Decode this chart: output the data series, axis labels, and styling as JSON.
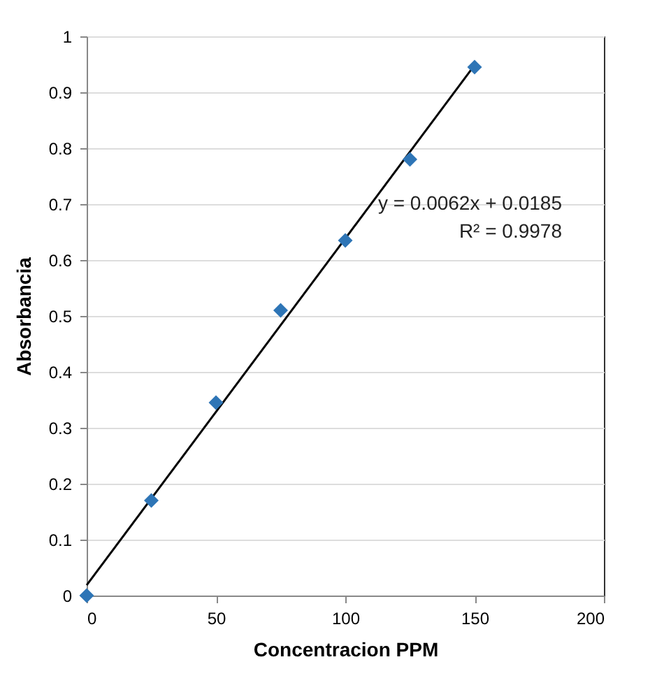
{
  "chart_data": {
    "type": "scatter",
    "xlabel": "Concentracion PPM",
    "ylabel": "Absorbancia",
    "xlim": [
      0,
      200
    ],
    "xticks": [
      0,
      50,
      100,
      150,
      200
    ],
    "ylim": [
      0,
      1
    ],
    "yticks": [
      0,
      0.1,
      0.2,
      0.3,
      0.4,
      0.5,
      0.6,
      0.7,
      0.8,
      0.9,
      1
    ],
    "grid": "y",
    "series": [
      {
        "type": "scatter",
        "color": "#2e75b6",
        "marker": "diamond",
        "x": [
          0,
          25,
          50,
          75,
          100,
          125,
          150
        ],
        "values": [
          0,
          0.17,
          0.345,
          0.51,
          0.635,
          0.78,
          0.945
        ]
      },
      {
        "type": "line",
        "color": "#000000",
        "x": [
          0,
          150
        ],
        "values": [
          0.0185,
          0.9485
        ]
      }
    ],
    "annotations": [
      "y = 0.0062x + 0.0185",
      "R² = 0.9978"
    ]
  }
}
